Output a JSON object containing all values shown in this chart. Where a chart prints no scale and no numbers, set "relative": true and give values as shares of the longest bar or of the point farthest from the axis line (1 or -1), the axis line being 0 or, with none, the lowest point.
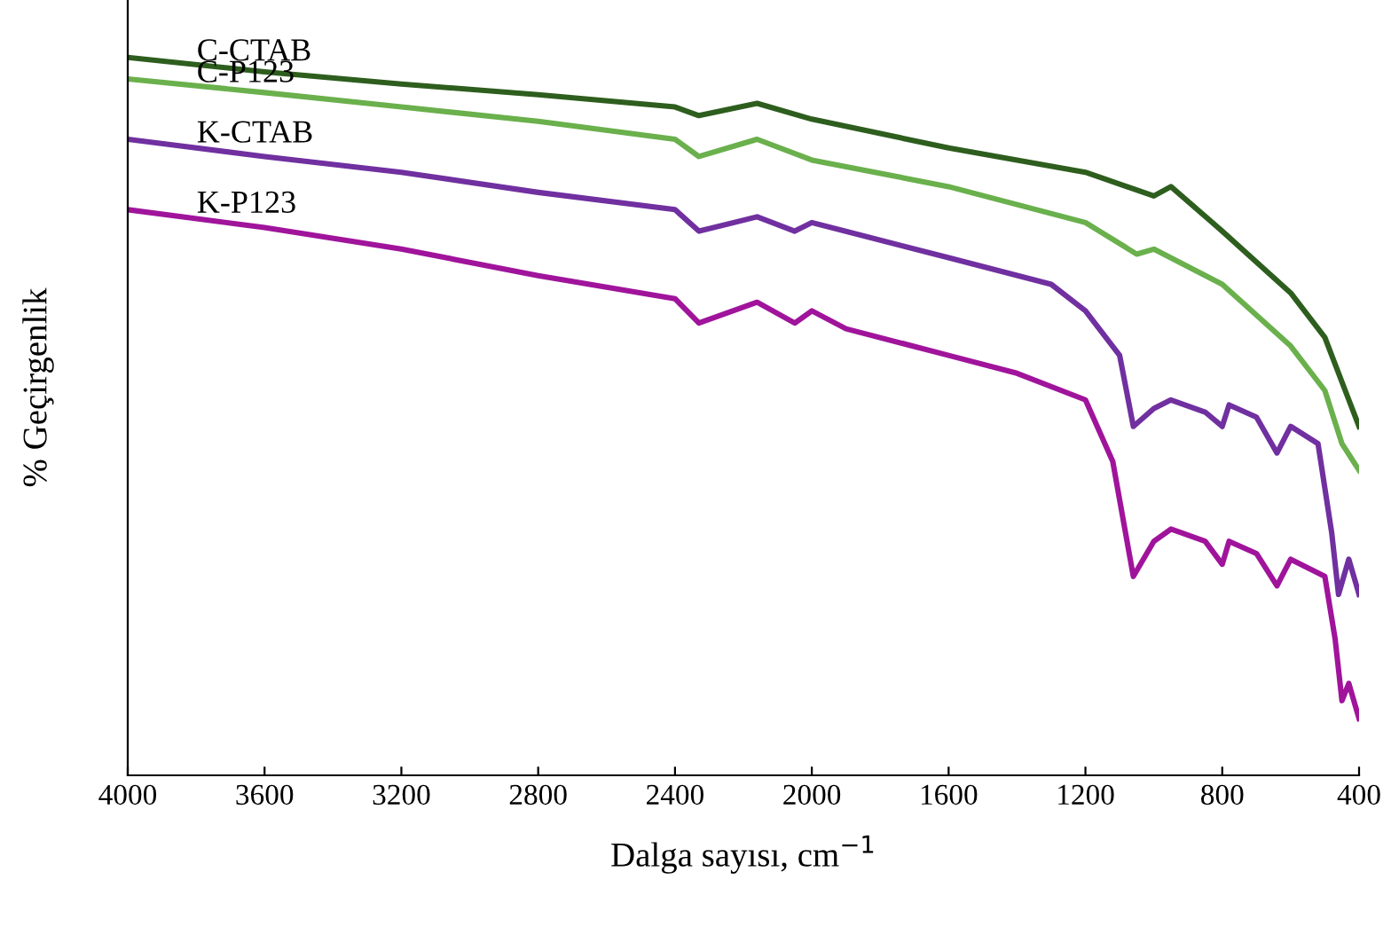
{
  "chart_data": {
    "type": "line",
    "relative": true,
    "xlabel": "Dalga sayısı, cm$^{−1}$",
    "ylabel": "% Geçirgenlik",
    "xlim": [
      4000,
      400
    ],
    "xticks": [
      4000,
      3600,
      3200,
      2800,
      2400,
      2000,
      1600,
      1200,
      800,
      400
    ],
    "grid": false,
    "legend": false,
    "marker": "none",
    "line_style": "solid",
    "series": [
      {
        "name": "C-CTAB",
        "color": "#2e5e1e",
        "x": [
          4000,
          3600,
          3200,
          2800,
          2400,
          2330,
          2160,
          2000,
          1600,
          1200,
          1000,
          950,
          800,
          600,
          500,
          430,
          400
        ],
        "values": [
          1.0,
          0.98,
          0.963,
          0.948,
          0.931,
          0.919,
          0.936,
          0.914,
          0.874,
          0.84,
          0.807,
          0.82,
          0.758,
          0.672,
          0.61,
          0.523,
          0.486
        ]
      },
      {
        "name": "C-P123",
        "color": "#6ab04c",
        "x": [
          4000,
          3600,
          3200,
          2800,
          2400,
          2330,
          2160,
          2000,
          1600,
          1200,
          1050,
          1000,
          800,
          600,
          500,
          450,
          400
        ],
        "values": [
          0.97,
          0.951,
          0.931,
          0.911,
          0.886,
          0.862,
          0.886,
          0.857,
          0.82,
          0.77,
          0.726,
          0.733,
          0.684,
          0.598,
          0.536,
          0.462,
          0.425
        ]
      },
      {
        "name": "K-CTAB",
        "color": "#7030a0",
        "x": [
          4000,
          3600,
          3200,
          2800,
          2400,
          2330,
          2160,
          2050,
          2000,
          1600,
          1300,
          1200,
          1100,
          1060,
          1000,
          950,
          850,
          800,
          780,
          700,
          640,
          600,
          520,
          480,
          460,
          430,
          400
        ],
        "values": [
          0.886,
          0.862,
          0.84,
          0.812,
          0.788,
          0.758,
          0.778,
          0.758,
          0.77,
          0.721,
          0.684,
          0.647,
          0.585,
          0.486,
          0.511,
          0.523,
          0.506,
          0.486,
          0.516,
          0.499,
          0.449,
          0.486,
          0.462,
          0.338,
          0.252,
          0.301,
          0.252
        ]
      },
      {
        "name": "K-P123",
        "color": "#a0149b",
        "x": [
          4000,
          3600,
          3200,
          2800,
          2400,
          2330,
          2160,
          2050,
          2000,
          1900,
          1600,
          1400,
          1200,
          1120,
          1060,
          1000,
          950,
          850,
          800,
          780,
          700,
          640,
          600,
          500,
          470,
          450,
          430,
          400
        ],
        "values": [
          0.788,
          0.763,
          0.733,
          0.696,
          0.664,
          0.63,
          0.659,
          0.63,
          0.647,
          0.622,
          0.585,
          0.56,
          0.523,
          0.437,
          0.277,
          0.326,
          0.343,
          0.326,
          0.294,
          0.326,
          0.309,
          0.264,
          0.301,
          0.277,
          0.19,
          0.104,
          0.128,
          0.079
        ]
      }
    ]
  }
}
